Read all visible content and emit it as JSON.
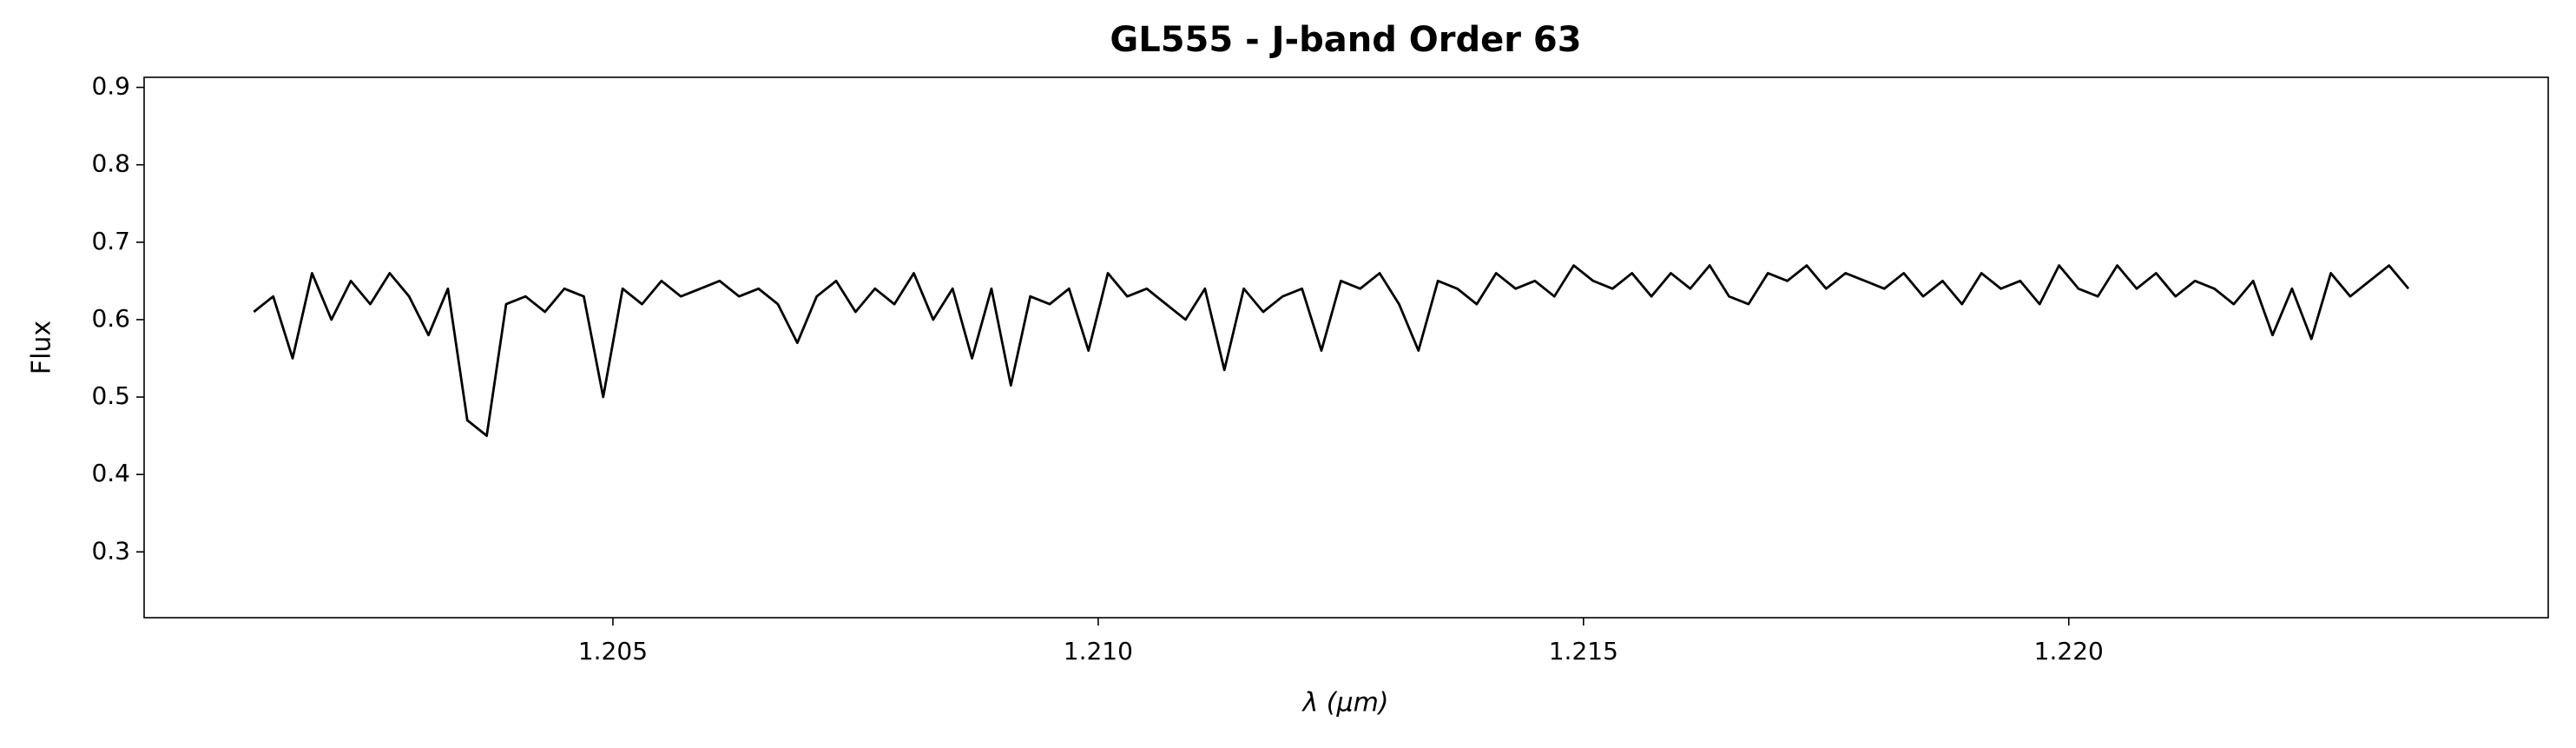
{
  "chart_data": {
    "type": "line",
    "title": "GL555 - J-band Order 63",
    "xlabel": "λ (μm)",
    "ylabel": "Flux",
    "x": [
      1.2013,
      1.2015,
      1.2017,
      1.2019,
      1.2021,
      1.2023,
      1.2025,
      1.2027,
      1.2029,
      1.2031,
      1.2033,
      1.2035,
      1.2037,
      1.2039,
      1.2041,
      1.2043,
      1.2045,
      1.2047,
      1.2049,
      1.2051,
      1.2053,
      1.2055,
      1.2057,
      1.2059,
      1.2061,
      1.2063,
      1.2065,
      1.2067,
      1.2069,
      1.2071,
      1.2073,
      1.2075,
      1.2077,
      1.2079,
      1.2081,
      1.2083,
      1.2085,
      1.2087,
      1.2089,
      1.2091,
      1.2093,
      1.2095,
      1.2097,
      1.2099,
      1.2101,
      1.2103,
      1.2105,
      1.2107,
      1.2109,
      1.2111,
      1.2113,
      1.2115,
      1.2117,
      1.2119,
      1.2121,
      1.2123,
      1.2125,
      1.2127,
      1.2129,
      1.2131,
      1.2133,
      1.2135,
      1.2137,
      1.2139,
      1.2141,
      1.2143,
      1.2145,
      1.2147,
      1.2149,
      1.2151,
      1.2153,
      1.2155,
      1.2157,
      1.2159,
      1.2161,
      1.2163,
      1.2165,
      1.2167,
      1.2169,
      1.2171,
      1.2173,
      1.2175,
      1.2177,
      1.2179,
      1.2181,
      1.2183,
      1.2185,
      1.2187,
      1.2189,
      1.2191,
      1.2193,
      1.2195,
      1.2197,
      1.2199,
      1.2201,
      1.2203,
      1.2205,
      1.2207,
      1.2209,
      1.2211,
      1.2213,
      1.2215,
      1.2217,
      1.2219,
      1.2221,
      1.2223,
      1.2225,
      1.2227,
      1.2229,
      1.2231,
      1.2233,
      1.2235
    ],
    "series": [
      {
        "color": "#000000",
        "values": [
          0.61,
          0.63,
          0.55,
          0.66,
          0.6,
          0.65,
          0.62,
          0.66,
          0.63,
          0.58,
          0.64,
          0.47,
          0.45,
          0.62,
          0.63,
          0.61,
          0.64,
          0.63,
          0.5,
          0.64,
          0.62,
          0.65,
          0.63,
          0.64,
          0.65,
          0.63,
          0.64,
          0.62,
          0.57,
          0.63,
          0.65,
          0.61,
          0.64,
          0.62,
          0.66,
          0.6,
          0.64,
          0.55,
          0.64,
          0.515,
          0.63,
          0.62,
          0.64,
          0.56,
          0.66,
          0.63,
          0.64,
          0.62,
          0.6,
          0.64,
          0.535,
          0.64,
          0.61,
          0.63,
          0.64,
          0.56,
          0.65,
          0.64,
          0.66,
          0.62,
          0.56,
          0.65,
          0.64,
          0.62,
          0.66,
          0.64,
          0.65,
          0.63,
          0.67,
          0.65,
          0.64,
          0.66,
          0.63,
          0.66,
          0.64,
          0.67,
          0.63,
          0.62,
          0.66,
          0.65,
          0.67,
          0.64,
          0.66,
          0.65,
          0.64,
          0.66,
          0.63,
          0.65,
          0.62,
          0.66,
          0.64,
          0.65,
          0.62,
          0.67,
          0.64,
          0.63,
          0.67,
          0.64,
          0.66,
          0.63,
          0.65,
          0.64,
          0.62,
          0.65,
          0.58,
          0.64,
          0.575,
          0.66,
          0.63,
          0.65,
          0.67,
          0.64
        ]
      }
    ],
    "xlim": [
      1.20017,
      1.22494
    ],
    "ylim": [
      0.215,
      0.913
    ],
    "xticks": [
      1.205,
      {
        "value": 1.21,
        "label": "1.210"
      },
      1.215,
      {
        "value": 1.22,
        "label": "1.220"
      }
    ],
    "yticks": [
      0.3,
      0.4,
      0.5,
      0.6,
      0.7,
      0.8,
      0.9
    ]
  }
}
